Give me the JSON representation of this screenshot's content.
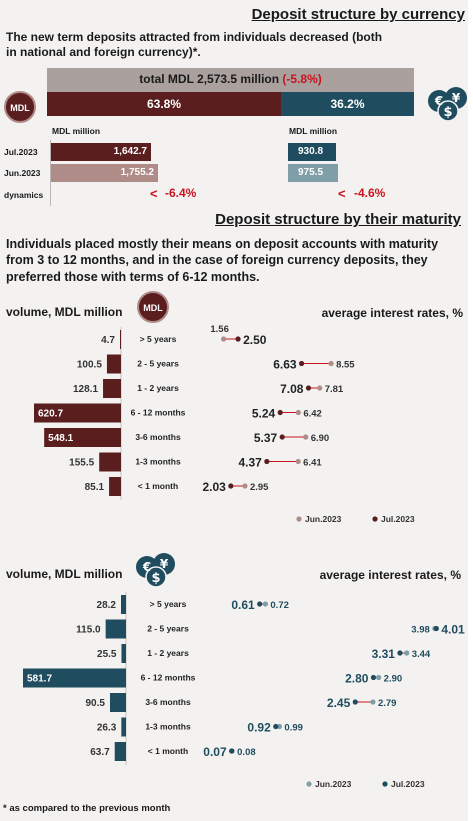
{
  "header": {
    "title": "Deposit structure by currency",
    "intro": "The new term deposits attracted from individuals decreased (both in national and foreign currency)*.",
    "total": {
      "label": "total MDL 2,573.5 million",
      "change": "(-5.8%)"
    },
    "mdl_badge": "MDL",
    "split": {
      "mdl_share": "63.8%",
      "fx_share": "36.2%",
      "mdl_fraction": 0.638
    },
    "unit_mdl": "MDL million",
    "unit_fx": "MDL million",
    "rows": [
      {
        "label": "Jul.2023",
        "mdl": "1,642.7",
        "mdl_value": 1642.7,
        "fx": "930.8",
        "fx_value": 930.8
      },
      {
        "label": "Jun.2023",
        "mdl": "1,755.2",
        "mdl_value": 1755.2,
        "fx": "975.5",
        "fx_value": 975.5
      }
    ],
    "dynamics": {
      "label": "dynamics",
      "mdl": "-6.4%",
      "fx": "-4.6%",
      "arrow": "<"
    }
  },
  "maturity": {
    "title": "Deposit structure by their maturity",
    "intro": "Individuals placed mostly their means on deposit accounts with maturity from 3 to 12 months, and in the case of foreign currency deposits, they preferred those with terms of 6-12 months.",
    "categories": [
      "> 5 years",
      "2 - 5 years",
      "1 - 2 years",
      "6 - 12 months",
      "3-6 months",
      "1-3 months",
      "< 1 month"
    ]
  },
  "footnote": "* as compared to the previous month",
  "colors": {
    "mdl_dark": "#5a1e1f",
    "mdl_light": "#b08c89",
    "fx_dark": "#1f4c5e",
    "fx_light": "#7f9ea8",
    "red": "#c8141e",
    "total_bg": "#aaa09d"
  },
  "chart_data": [
    {
      "type": "bar",
      "ylabel": "volume, MDL million",
      "categories": [
        "> 5 years",
        "2 - 5 years",
        "1 - 2 years",
        "6 - 12 months",
        "3-6 months",
        "1-3 months",
        "< 1 month"
      ],
      "values": [
        4.7,
        100.5,
        128.1,
        620.7,
        548.1,
        155.5,
        85.1
      ],
      "labels": [
        "4.7",
        "100.5",
        "128.1",
        "620.7",
        "548.1",
        "155.5",
        "85.1"
      ],
      "xlim": [
        0,
        620.7
      ]
    },
    {
      "type": "scatter",
      "title": "average interest rates, %",
      "categories": [
        "> 5 years",
        "2 - 5 years",
        "1 - 2 years",
        "6 - 12 months",
        "3-6 months",
        "1-3 months",
        "< 1 month"
      ],
      "series": [
        {
          "name": "Jun.2023",
          "values": [
            1.56,
            8.55,
            7.81,
            6.42,
            6.9,
            6.41,
            2.95
          ],
          "labels": [
            "1.56",
            "8.55",
            "7.81",
            "6.42",
            "6.90",
            "6.41",
            "2.95"
          ]
        },
        {
          "name": "Jul.2023",
          "values": [
            2.5,
            6.63,
            7.08,
            5.24,
            5.37,
            4.37,
            2.03
          ],
          "labels": [
            "2.50",
            "6.63",
            "7.08",
            "5.24",
            "5.37",
            "4.37",
            "2.03"
          ]
        }
      ],
      "xlim": [
        1.0,
        9.0
      ]
    },
    {
      "type": "bar",
      "ylabel": "volume, MDL million",
      "categories": [
        "> 5 years",
        "2 - 5 years",
        "1 - 2 years",
        "6 - 12 months",
        "3-6 months",
        "1-3 months",
        "< 1 month"
      ],
      "values": [
        28.2,
        115.0,
        25.5,
        581.7,
        90.5,
        26.3,
        63.7
      ],
      "labels": [
        "28.2",
        "115.0",
        "25.5",
        "581.7",
        "90.5",
        "26.3",
        "63.7"
      ],
      "xlim": [
        0,
        581.7
      ]
    },
    {
      "type": "scatter",
      "title": "average interest rates, %",
      "categories": [
        "> 5 years",
        "2 - 5 years",
        "1 - 2 years",
        "6 - 12 months",
        "3-6 months",
        "1-3 months",
        "< 1 month"
      ],
      "series": [
        {
          "name": "Jun.2023",
          "values": [
            0.72,
            3.98,
            3.44,
            2.9,
            2.79,
            0.99,
            0.08
          ],
          "labels": [
            "0.72",
            "3.98",
            "3.44",
            "2.90",
            "2.79",
            "0.99",
            "0.08"
          ]
        },
        {
          "name": "Jul.2023",
          "values": [
            0.61,
            4.01,
            3.31,
            2.8,
            2.45,
            0.92,
            0.07
          ],
          "labels": [
            "0.61",
            "4.01",
            "3.31",
            "2.80",
            "2.45",
            "0.92",
            "0.07"
          ]
        }
      ],
      "xlim": [
        0.0,
        4.1
      ]
    }
  ]
}
